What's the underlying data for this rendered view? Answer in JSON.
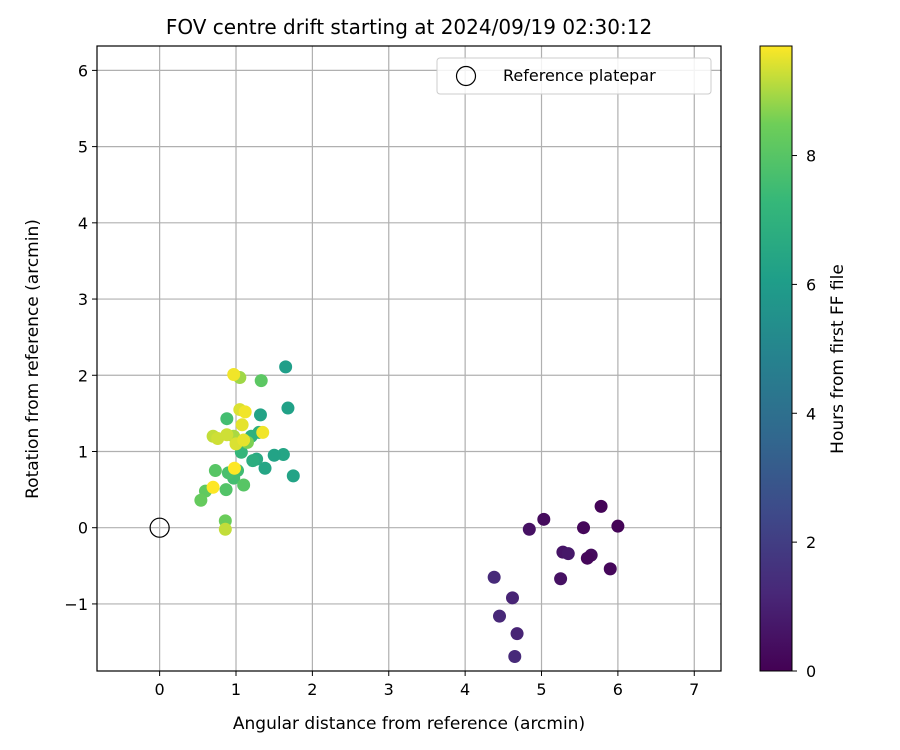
{
  "chart_data": {
    "type": "scatter",
    "title": "FOV centre drift starting at 2024/09/19 02:30:12",
    "xlabel": "Angular distance from reference (arcmin)",
    "ylabel": "Rotation from reference (arcmin)",
    "xlim": [
      -0.82,
      7.35
    ],
    "ylim": [
      -1.88,
      6.32
    ],
    "xticks": [
      0,
      1,
      2,
      3,
      4,
      5,
      6,
      7
    ],
    "yticks": [
      -1,
      0,
      1,
      2,
      3,
      4,
      5,
      6
    ],
    "xtick_labels": [
      "0",
      "1",
      "2",
      "3",
      "4",
      "5",
      "6",
      "7"
    ],
    "ytick_labels": [
      "−1",
      "0",
      "1",
      "2",
      "3",
      "4",
      "5",
      "6"
    ],
    "grid": true,
    "legend": {
      "placement": "top-right",
      "entries": [
        {
          "label": "Reference platepar",
          "marker": "open-circle"
        }
      ]
    },
    "reference_point": {
      "x": 0,
      "y": 0
    },
    "colorbar": {
      "label": "Hours from first FF file",
      "colormap": "viridis",
      "range": [
        0,
        9.7
      ],
      "ticks": [
        0,
        2,
        4,
        6,
        8
      ],
      "tick_labels": [
        "0",
        "2",
        "4",
        "6",
        "8"
      ]
    },
    "points": [
      {
        "x": 5.78,
        "y": 0.28,
        "c": 0.1
      },
      {
        "x": 6.0,
        "y": 0.02,
        "c": 0.1
      },
      {
        "x": 5.55,
        "y": 0.0,
        "c": 0.2
      },
      {
        "x": 5.03,
        "y": 0.11,
        "c": 0.3
      },
      {
        "x": 4.84,
        "y": -0.02,
        "c": 0.5
      },
      {
        "x": 5.28,
        "y": -0.32,
        "c": 0.6
      },
      {
        "x": 5.35,
        "y": -0.34,
        "c": 0.7
      },
      {
        "x": 5.65,
        "y": -0.36,
        "c": 0.3
      },
      {
        "x": 5.6,
        "y": -0.4,
        "c": 0.2
      },
      {
        "x": 5.9,
        "y": -0.54,
        "c": 0.2
      },
      {
        "x": 5.25,
        "y": -0.67,
        "c": 0.5
      },
      {
        "x": 4.38,
        "y": -0.65,
        "c": 1.3
      },
      {
        "x": 4.62,
        "y": -0.92,
        "c": 1.1
      },
      {
        "x": 4.45,
        "y": -1.16,
        "c": 1.2
      },
      {
        "x": 4.68,
        "y": -1.39,
        "c": 1.1
      },
      {
        "x": 4.65,
        "y": -1.69,
        "c": 1.3
      },
      {
        "x": 1.65,
        "y": 2.11,
        "c": 6.1
      },
      {
        "x": 1.68,
        "y": 1.57,
        "c": 6.2
      },
      {
        "x": 1.32,
        "y": 1.48,
        "c": 6.3
      },
      {
        "x": 1.75,
        "y": 0.68,
        "c": 6.3
      },
      {
        "x": 1.62,
        "y": 0.96,
        "c": 6.4
      },
      {
        "x": 1.5,
        "y": 0.95,
        "c": 6.3
      },
      {
        "x": 1.38,
        "y": 0.78,
        "c": 6.4
      },
      {
        "x": 1.27,
        "y": 0.9,
        "c": 6.6
      },
      {
        "x": 1.22,
        "y": 0.88,
        "c": 6.8
      },
      {
        "x": 1.3,
        "y": 1.25,
        "c": 6.9
      },
      {
        "x": 1.2,
        "y": 1.2,
        "c": 7.0
      },
      {
        "x": 1.07,
        "y": 0.99,
        "c": 7.2
      },
      {
        "x": 0.88,
        "y": 1.43,
        "c": 7.6
      },
      {
        "x": 1.02,
        "y": 0.75,
        "c": 7.5
      },
      {
        "x": 0.97,
        "y": 0.65,
        "c": 7.6
      },
      {
        "x": 0.9,
        "y": 0.72,
        "c": 7.7
      },
      {
        "x": 0.87,
        "y": 0.5,
        "c": 7.9
      },
      {
        "x": 0.73,
        "y": 0.75,
        "c": 8.0
      },
      {
        "x": 1.1,
        "y": 0.56,
        "c": 8.0
      },
      {
        "x": 1.33,
        "y": 1.93,
        "c": 8.1
      },
      {
        "x": 0.6,
        "y": 0.48,
        "c": 8.2
      },
      {
        "x": 0.54,
        "y": 0.36,
        "c": 8.3
      },
      {
        "x": 0.86,
        "y": 0.09,
        "c": 8.4
      },
      {
        "x": 1.15,
        "y": 1.12,
        "c": 8.6
      },
      {
        "x": 1.05,
        "y": 1.97,
        "c": 8.9
      },
      {
        "x": 0.97,
        "y": 1.2,
        "c": 9.0
      },
      {
        "x": 0.86,
        "y": -0.02,
        "c": 9.2
      },
      {
        "x": 0.7,
        "y": 1.2,
        "c": 9.2
      },
      {
        "x": 0.76,
        "y": 1.17,
        "c": 9.3
      },
      {
        "x": 0.88,
        "y": 1.22,
        "c": 9.3
      },
      {
        "x": 1.0,
        "y": 1.1,
        "c": 9.4
      },
      {
        "x": 1.08,
        "y": 1.35,
        "c": 9.5
      },
      {
        "x": 1.05,
        "y": 1.55,
        "c": 9.4
      },
      {
        "x": 1.12,
        "y": 1.52,
        "c": 9.6
      },
      {
        "x": 1.1,
        "y": 1.15,
        "c": 9.5
      },
      {
        "x": 1.35,
        "y": 1.25,
        "c": 9.6
      },
      {
        "x": 0.97,
        "y": 2.01,
        "c": 9.6
      },
      {
        "x": 0.98,
        "y": 0.78,
        "c": 9.7
      },
      {
        "x": 0.7,
        "y": 0.53,
        "c": 9.7
      }
    ]
  }
}
